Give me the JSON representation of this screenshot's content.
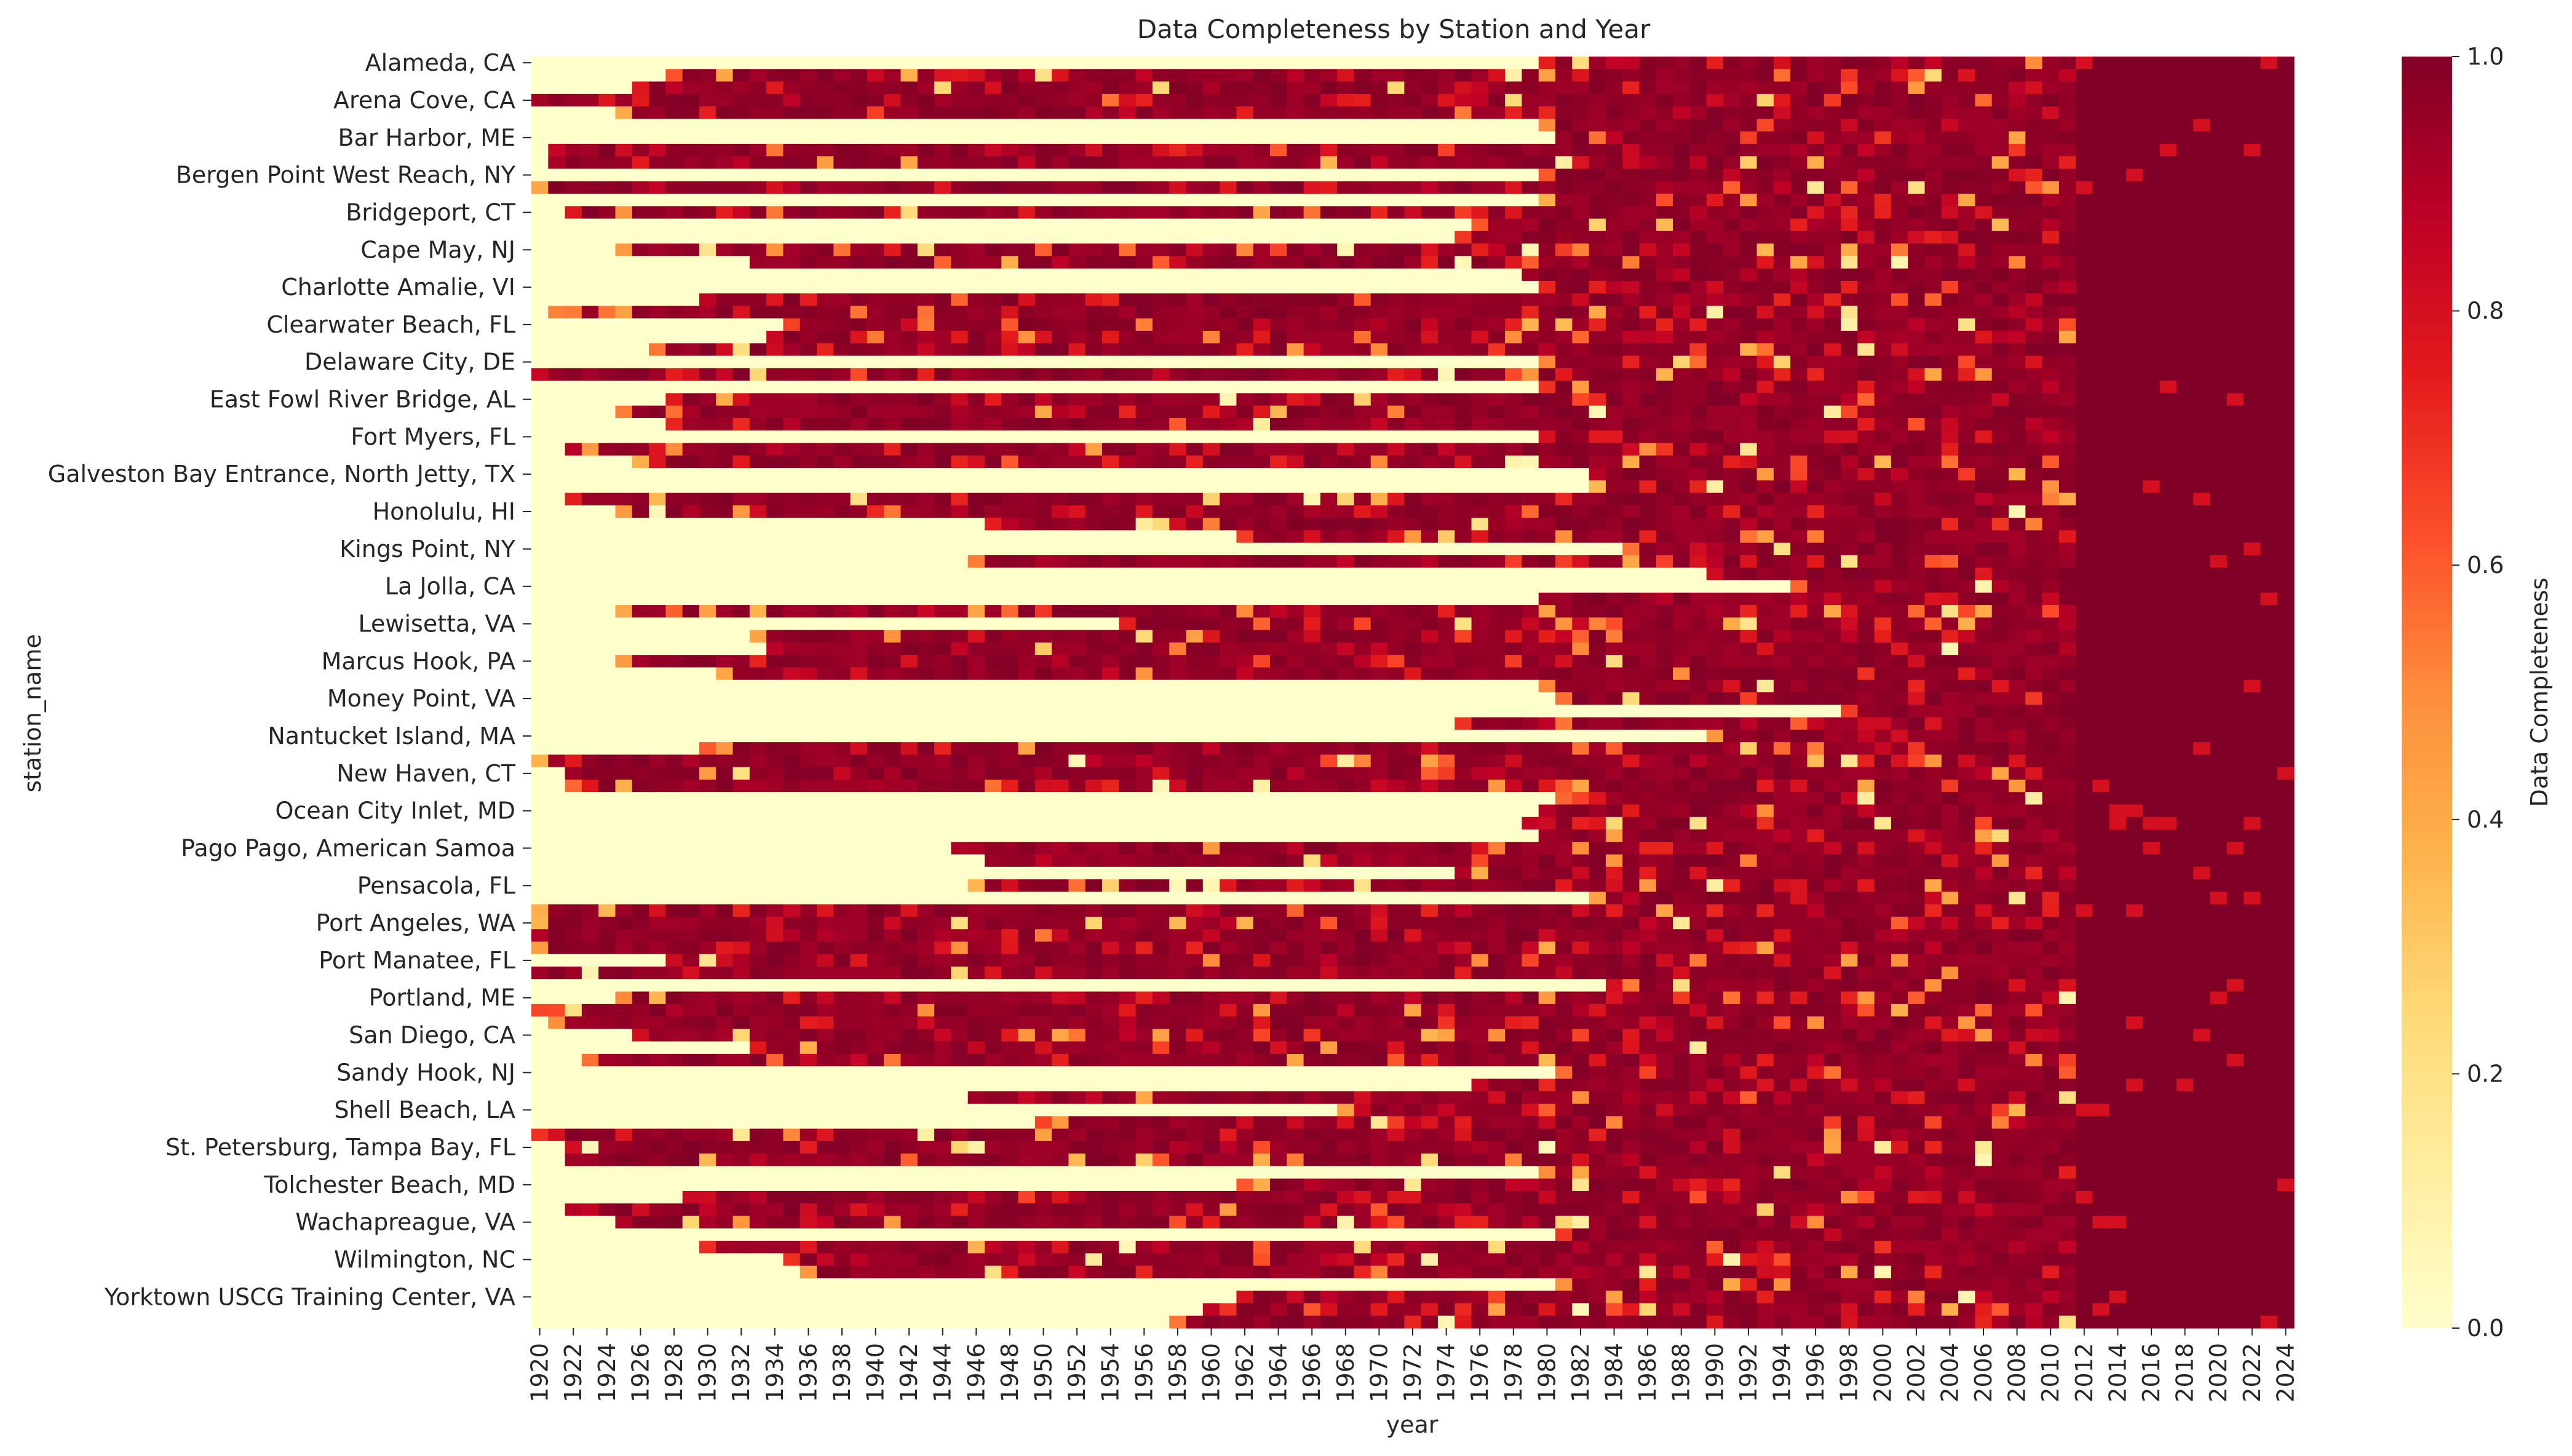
{
  "chart_data": {
    "type": "heatmap",
    "title": "Data Completeness by Station and Year",
    "xlabel": "year",
    "ylabel": "station_name",
    "colorbar_label": "Data Completeness",
    "colormap": "YlOrRd",
    "value_range": [
      0.0,
      1.0
    ],
    "colorbar_ticks": [
      "0.0",
      "0.2",
      "0.4",
      "0.6",
      "0.8",
      "1.0"
    ],
    "x_tick_labels": [
      "1920",
      "1922",
      "1924",
      "1926",
      "1928",
      "1930",
      "1932",
      "1934",
      "1936",
      "1938",
      "1940",
      "1942",
      "1944",
      "1946",
      "1948",
      "1950",
      "1952",
      "1954",
      "1956",
      "1958",
      "1960",
      "1962",
      "1964",
      "1966",
      "1968",
      "1970",
      "1972",
      "1974",
      "1976",
      "1978",
      "1980",
      "1982",
      "1984",
      "1986",
      "1988",
      "1990",
      "1992",
      "1994",
      "1996",
      "1998",
      "2000",
      "2002",
      "2004",
      "2006",
      "2008",
      "2010",
      "2012",
      "2014",
      "2016",
      "2018",
      "2020",
      "2022",
      "2024"
    ],
    "y_tick_labels": [
      "Alameda, CA",
      "Arena Cove, CA",
      "Bar Harbor, ME",
      "Bergen Point West Reach, NY",
      "Bridgeport, CT",
      "Cape May, NJ",
      "Charlotte Amalie, VI",
      "Clearwater Beach, FL",
      "Delaware City, DE",
      "East Fowl River Bridge, AL",
      "Fort Myers, FL",
      "Galveston Bay Entrance, North Jetty, TX",
      "Honolulu, HI",
      "Kings Point, NY",
      "La Jolla, CA",
      "Lewisetta, VA",
      "Marcus Hook, PA",
      "Money Point, VA",
      "Nantucket Island, MA",
      "New Haven, CT",
      "Ocean City Inlet, MD",
      "Pago Pago, American Samoa",
      "Pensacola, FL",
      "Port Angeles, WA",
      "Port Manatee, FL",
      "Portland, ME",
      "San Diego, CA",
      "Sandy Hook, NJ",
      "Shell Beach, LA",
      "St. Petersburg, Tampa Bay, FL",
      "Tolchester Beach, MD",
      "Wachapreague, VA",
      "Wilmington, NC",
      "Yorktown USCG Training Center, VA"
    ],
    "year_start": 1920,
    "year_end": 2024,
    "row_starts": [
      1980,
      1928,
      1926,
      1920,
      1925,
      1980,
      1981,
      1921,
      1921,
      1980,
      1920,
      1980,
      1922,
      1976,
      1975,
      1925,
      1933,
      1979,
      1980,
      1930,
      1921,
      1935,
      1934,
      1927,
      1980,
      1920,
      1980,
      1928,
      1925,
      1928,
      1980,
      1922,
      1926,
      1983,
      1983,
      1922,
      1925,
      1947,
      1962,
      1985,
      1946,
      1990,
      1995,
      1980,
      1925,
      1955,
      1933,
      1934,
      1925,
      1931,
      1980,
      1981,
      1998,
      1975,
      1990,
      1930,
      1920,
      1922,
      1922,
      1981,
      1980,
      1979,
      1980,
      1945,
      1947,
      1975,
      1946,
      1983,
      1920,
      1920,
      1920,
      1920,
      1928,
      1920,
      1984,
      1925,
      1920,
      1921,
      1926,
      1933,
      1923,
      1981,
      1976,
      1946,
      1968,
      1950,
      1920,
      1922,
      1922,
      1980,
      1962,
      1929,
      1922,
      1925,
      1981,
      1930,
      1935,
      1936,
      1981,
      1962,
      1960,
      1958
    ],
    "row_ends": [
      2024,
      2024,
      2024,
      2024,
      2024,
      2024,
      2024,
      2024,
      2024,
      2024,
      2024,
      2024,
      2024,
      2024,
      2024,
      2024,
      2024,
      2024,
      2024,
      2024,
      2024,
      2024,
      2024,
      2024,
      2024,
      2024,
      2024,
      2024,
      2024,
      2024,
      2024,
      2024,
      2024,
      2024,
      2024,
      2024,
      2024,
      2024,
      2024,
      2024,
      2024,
      2024,
      2024,
      2024,
      2024,
      2024,
      2024,
      2024,
      2024,
      2024,
      2024,
      2024,
      2024,
      2024,
      2024,
      2024,
      2024,
      2024,
      2024,
      2024,
      2024,
      2024,
      2024,
      2024,
      2024,
      2024,
      2024,
      2024,
      2024,
      2024,
      2024,
      2024,
      2024,
      2024,
      2024,
      2024,
      2024,
      2024,
      2024,
      2024,
      2024,
      2024,
      2024,
      2024,
      2024,
      2024,
      2024,
      2024,
      2024,
      2024,
      2024,
      2024,
      2024,
      2024,
      2024,
      2024,
      2024,
      2024,
      2024,
      2024,
      2024,
      2024
    ]
  }
}
